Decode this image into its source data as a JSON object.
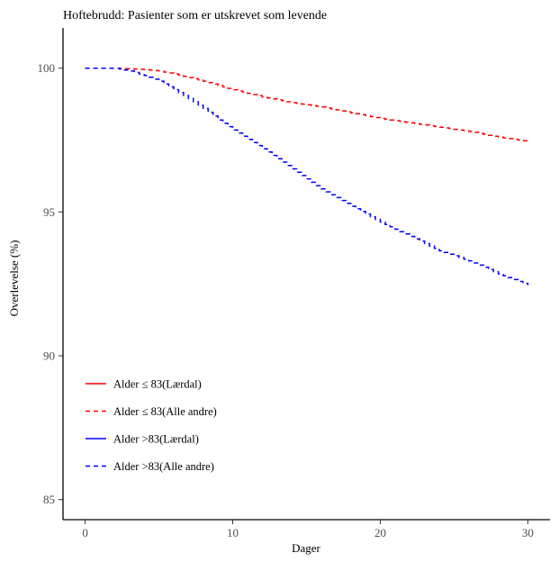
{
  "chart_data": {
    "type": "line",
    "title": "Hoftebrudd: Pasienter som er utskrevet som levende",
    "xlabel": "Dager",
    "ylabel": "Overlevelse (%)",
    "xlim": [
      -1.5,
      31.5
    ],
    "ylim": [
      84.3,
      101.4
    ],
    "xticks": [
      0,
      10,
      20,
      30
    ],
    "yticks": [
      85,
      90,
      95,
      100
    ],
    "grid": false,
    "legend_position": "bottom-left",
    "series": [
      {
        "name": "Alder ≤ 83(Lærdal)",
        "color": "#ff0000",
        "dash": "solid",
        "x": [],
        "y": []
      },
      {
        "name": "Alder ≤ 83(Alle andre)",
        "color": "#ff0000",
        "dash": "dashed",
        "x": [
          0,
          2,
          4,
          5,
          6,
          8,
          10,
          12,
          14,
          16,
          18,
          20,
          22,
          24,
          26,
          28,
          30
        ],
        "y": [
          100,
          100,
          99.95,
          99.9,
          99.8,
          99.55,
          99.25,
          99.0,
          98.8,
          98.65,
          98.45,
          98.25,
          98.1,
          97.95,
          97.8,
          97.6,
          97.45
        ]
      },
      {
        "name": "Alder >83(Lærdal)",
        "color": "#0000ff",
        "dash": "solid",
        "x": [],
        "y": []
      },
      {
        "name": "Alder >83(Alle andre)",
        "color": "#0000ff",
        "dash": "dashed",
        "x": [
          0,
          2,
          3,
          4,
          5,
          6,
          7,
          8,
          9,
          10,
          12,
          14,
          16,
          18,
          20,
          22,
          24,
          26,
          28,
          30
        ],
        "y": [
          100,
          100,
          99.9,
          99.75,
          99.55,
          99.25,
          98.95,
          98.6,
          98.2,
          97.85,
          97.2,
          96.5,
          95.8,
          95.2,
          94.65,
          94.15,
          93.65,
          93.3,
          92.85,
          92.45
        ]
      }
    ]
  }
}
